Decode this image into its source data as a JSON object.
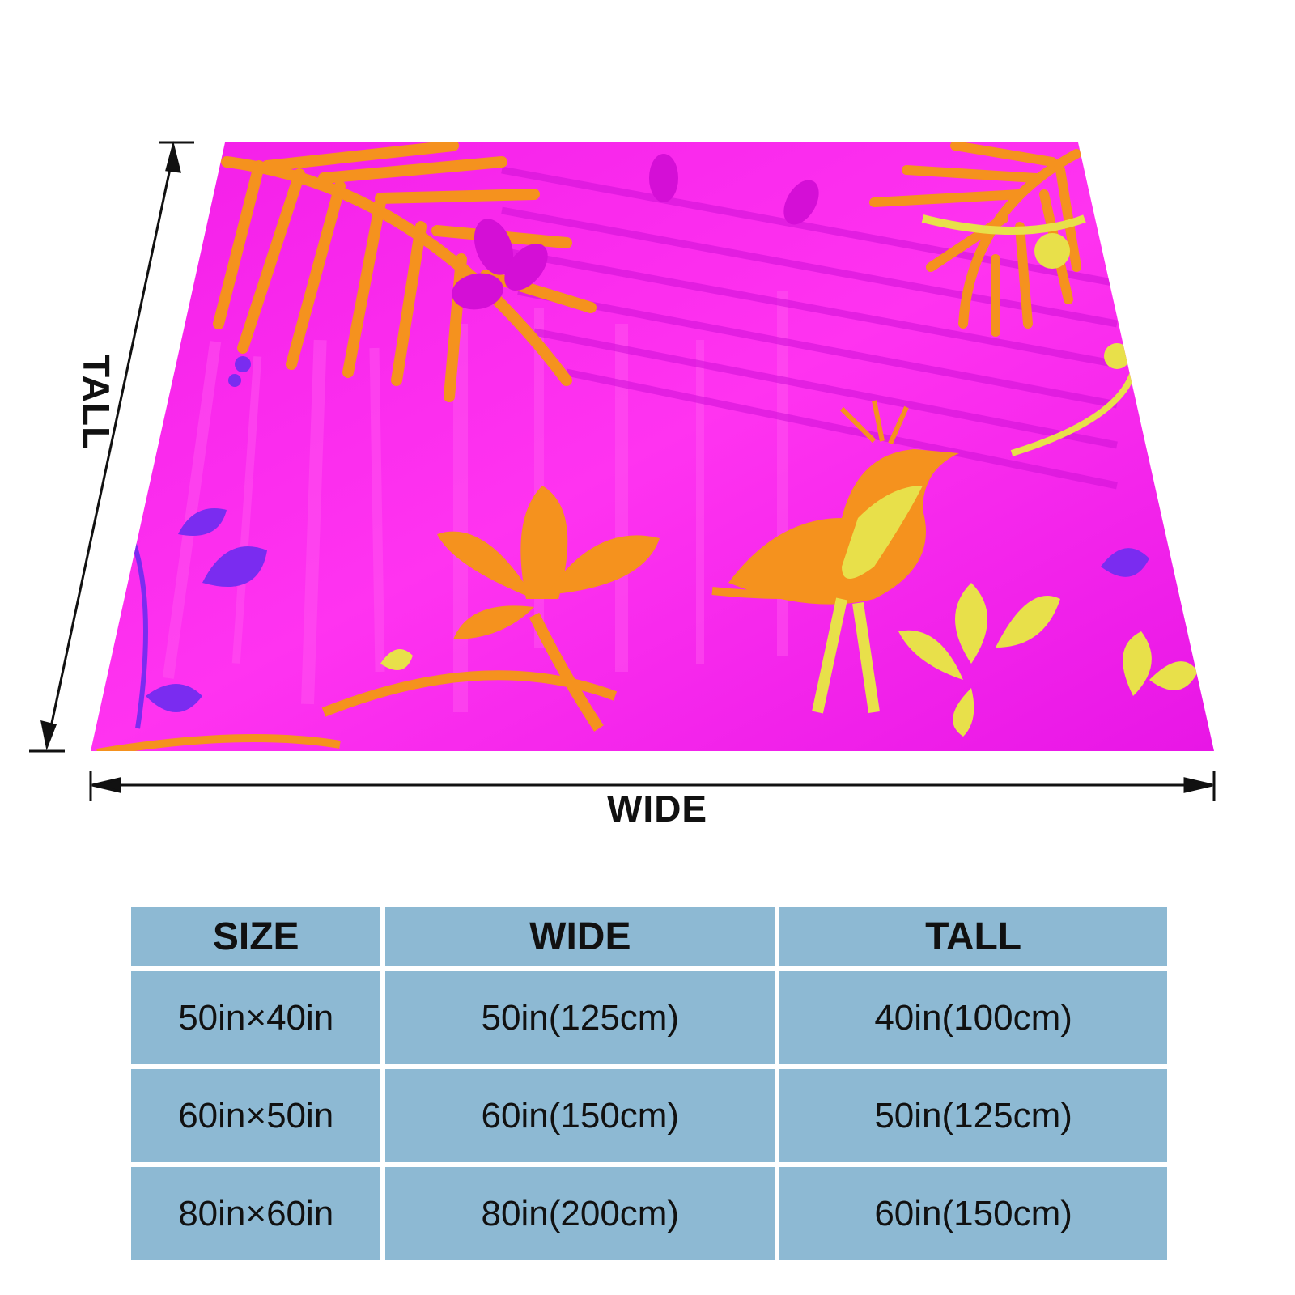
{
  "figure": {
    "wide_label": "WIDE",
    "tall_label": "TALL",
    "colors": {
      "blanket_base": "#f21ee8",
      "leaf_orange": "#f5921e",
      "accent_yellow": "#e8e04a",
      "accent_purple": "#7a2cf0",
      "arrow": "#111111"
    },
    "icons": [
      "palm-leaf-icon",
      "flower-icon",
      "bird-icon",
      "swirl-icon"
    ]
  },
  "table": {
    "headers": [
      "SIZE",
      "WIDE",
      "TALL"
    ],
    "rows": [
      [
        "50in×40in",
        "50in(125cm)",
        "40in(100cm)"
      ],
      [
        "60in×50in",
        "60in(150cm)",
        "50in(125cm)"
      ],
      [
        "80in×60in",
        "80in(200cm)",
        "60in(150cm)"
      ]
    ],
    "cell_color": "#8db9d3"
  }
}
